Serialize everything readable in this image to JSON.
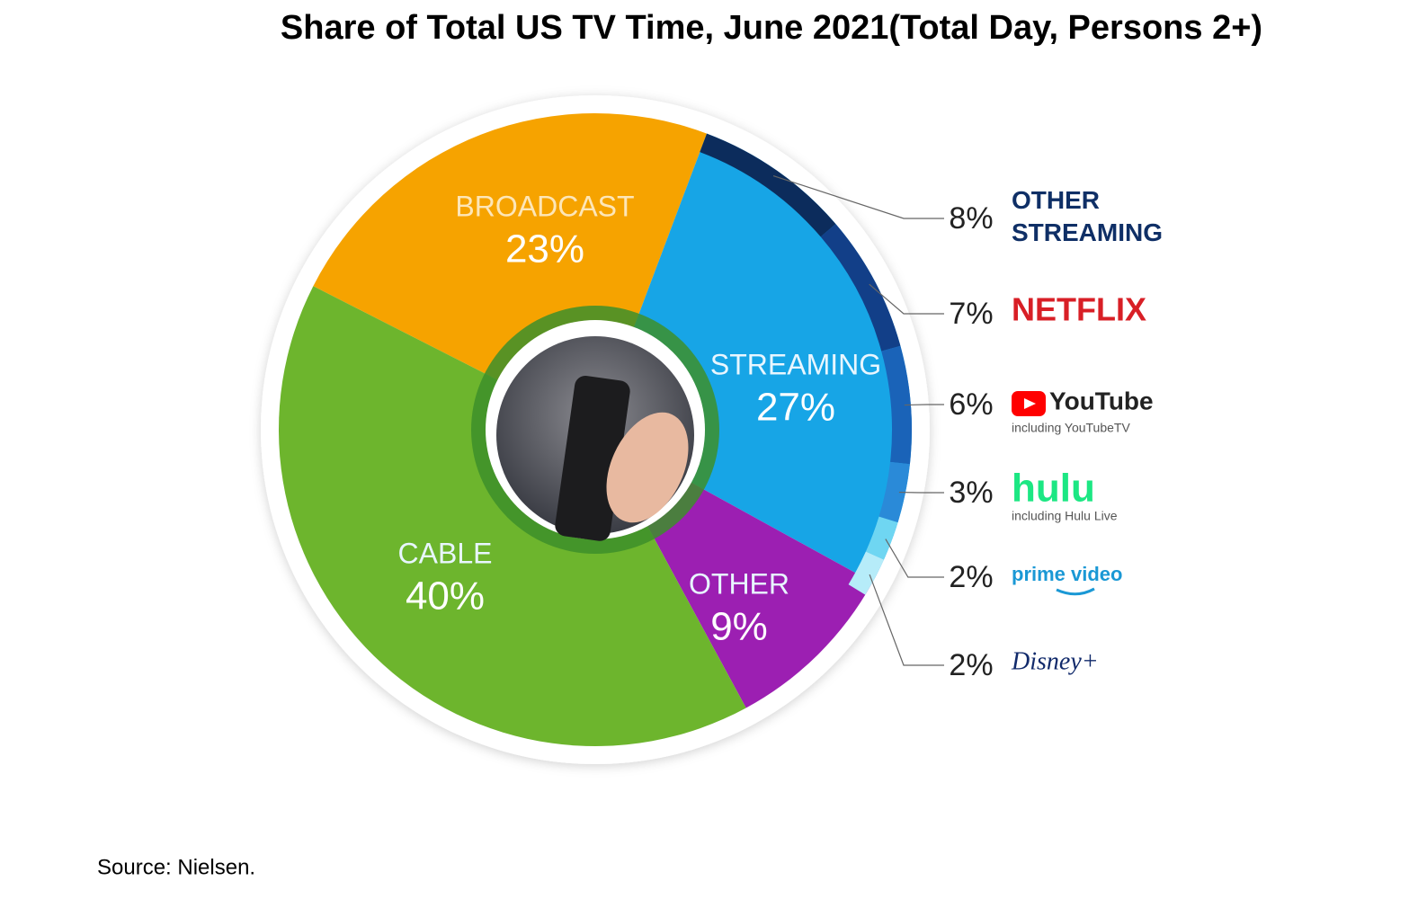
{
  "chart_data": [
    {
      "type": "pie",
      "title": "Share of Total US TV Time, June 2021(Total Day, Persons 2+)",
      "categories": [
        "BROADCAST",
        "STREAMING",
        "OTHER",
        "CABLE"
      ],
      "values": [
        23,
        27,
        9,
        40
      ],
      "value_labels": [
        "23%",
        "27%",
        "9%",
        "40%"
      ],
      "colors": [
        "#f6a300",
        "#17a5e6",
        "#9c1fb2",
        "#6db52d"
      ]
    },
    {
      "type": "ring",
      "categories": [
        "OTHER STREAMING",
        "NETFLIX",
        "YouTube",
        "hulu",
        "prime video",
        "Disney+"
      ],
      "notes": [
        null,
        null,
        "including YouTubeTV",
        "including Hulu Live",
        null,
        null
      ],
      "values": [
        8,
        7,
        6,
        3,
        2,
        2
      ],
      "value_labels": [
        "8%",
        "7%",
        "6%",
        "3%",
        "2%",
        "2%"
      ],
      "colors": [
        "#0c2c5c",
        "#123f88",
        "#1a63b8",
        "#2a8ad8",
        "#6fd6f2",
        "#b6ecf9"
      ]
    }
  ],
  "source": "Source: Nielsen."
}
